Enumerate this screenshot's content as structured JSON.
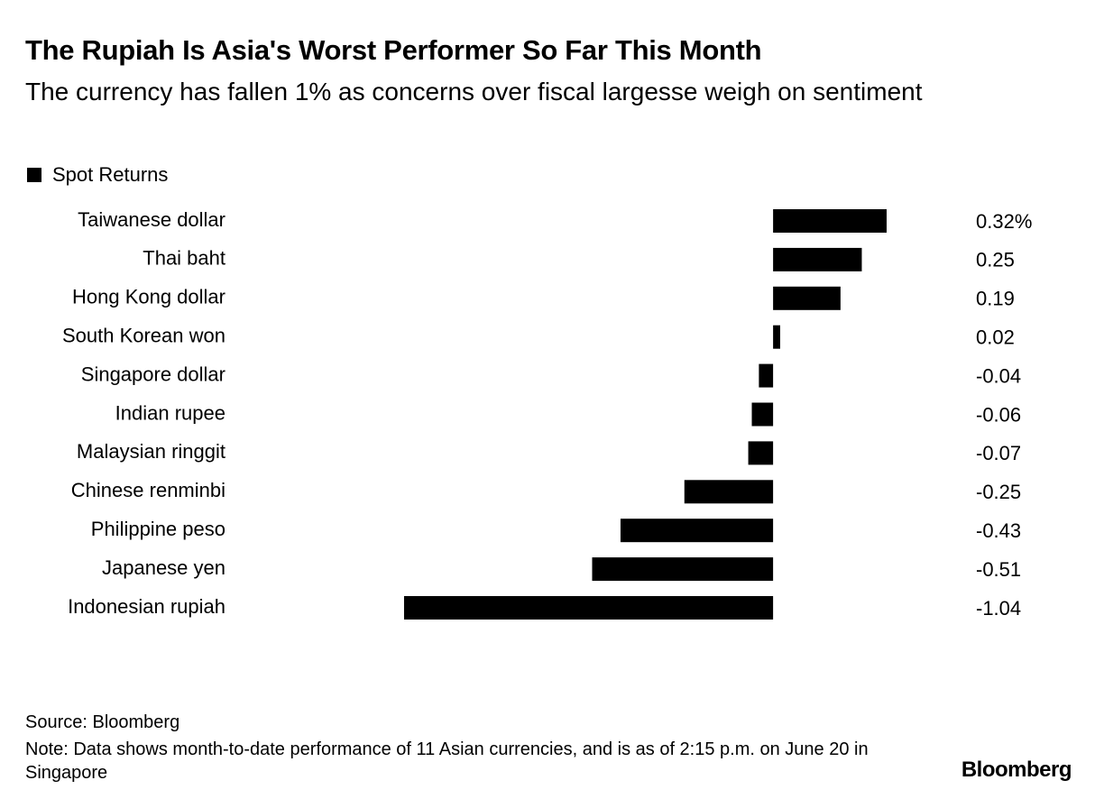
{
  "chart_data": {
    "type": "bar",
    "orientation": "horizontal",
    "title": "The Rupiah Is Asia's Worst Performer So Far This Month",
    "subtitle": "The currency has fallen 1% as concerns over fiscal largesse weigh on sentiment",
    "categories": [
      "Taiwanese dollar",
      "Thai baht",
      "Hong Kong dollar",
      "South Korean won",
      "Singapore dollar",
      "Indian rupee",
      "Malaysian ringgit",
      "Chinese renminbi",
      "Philippine peso",
      "Japanese yen",
      "Indonesian rupiah"
    ],
    "series": [
      {
        "name": "Spot Returns",
        "color": "#000000",
        "values": [
          0.32,
          0.25,
          0.19,
          0.02,
          -0.04,
          -0.06,
          -0.07,
          -0.25,
          -0.43,
          -0.51,
          -1.04
        ],
        "value_labels": [
          "0.32%",
          "0.25",
          "0.19",
          "0.02",
          "-0.04",
          "-0.06",
          "-0.07",
          "-0.25",
          "-0.43",
          "-0.51",
          "-1.04"
        ]
      }
    ],
    "source": "Source: Bloomberg",
    "note": "Note: Data shows month-to-date performance of 11 Asian currencies, and is as of 2:15 p.m. on June 20 in Singapore",
    "logo": "Bloomberg"
  }
}
